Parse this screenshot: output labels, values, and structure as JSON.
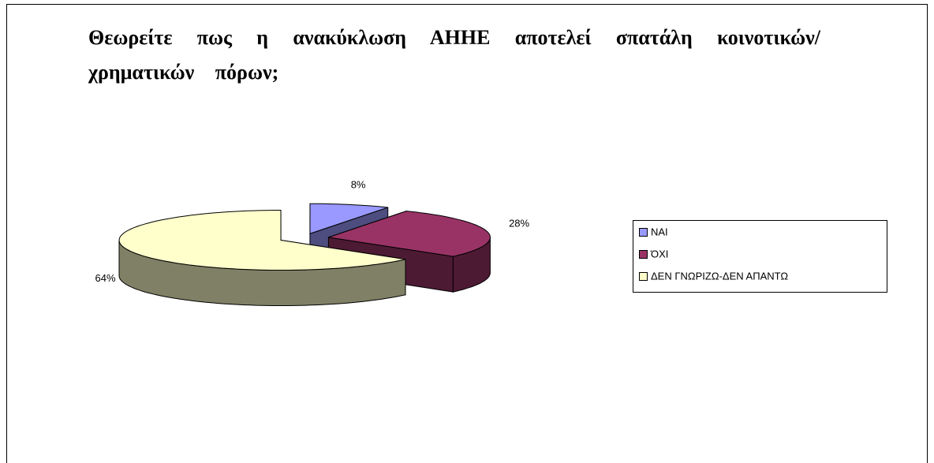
{
  "chart_data": {
    "type": "pie3d",
    "title": "Θεωρείτε πως η ανακύκλωση ΑΗΗΕ αποτελεί σπατάλη κοινοτικών/χρηματικών πόρων;",
    "categories": [
      "ΝΑΙ",
      "ΌΧΙ",
      "ΔΕΝ ΓΝΩΡΙΖΩ-ΔΕΝ ΑΠΑΝΤΩ"
    ],
    "values": [
      8,
      28,
      64
    ],
    "value_labels": [
      "8%",
      "28%",
      "64%"
    ],
    "colors": [
      "#9999ff",
      "#993366",
      "#ffffcc"
    ],
    "legend": "right"
  }
}
